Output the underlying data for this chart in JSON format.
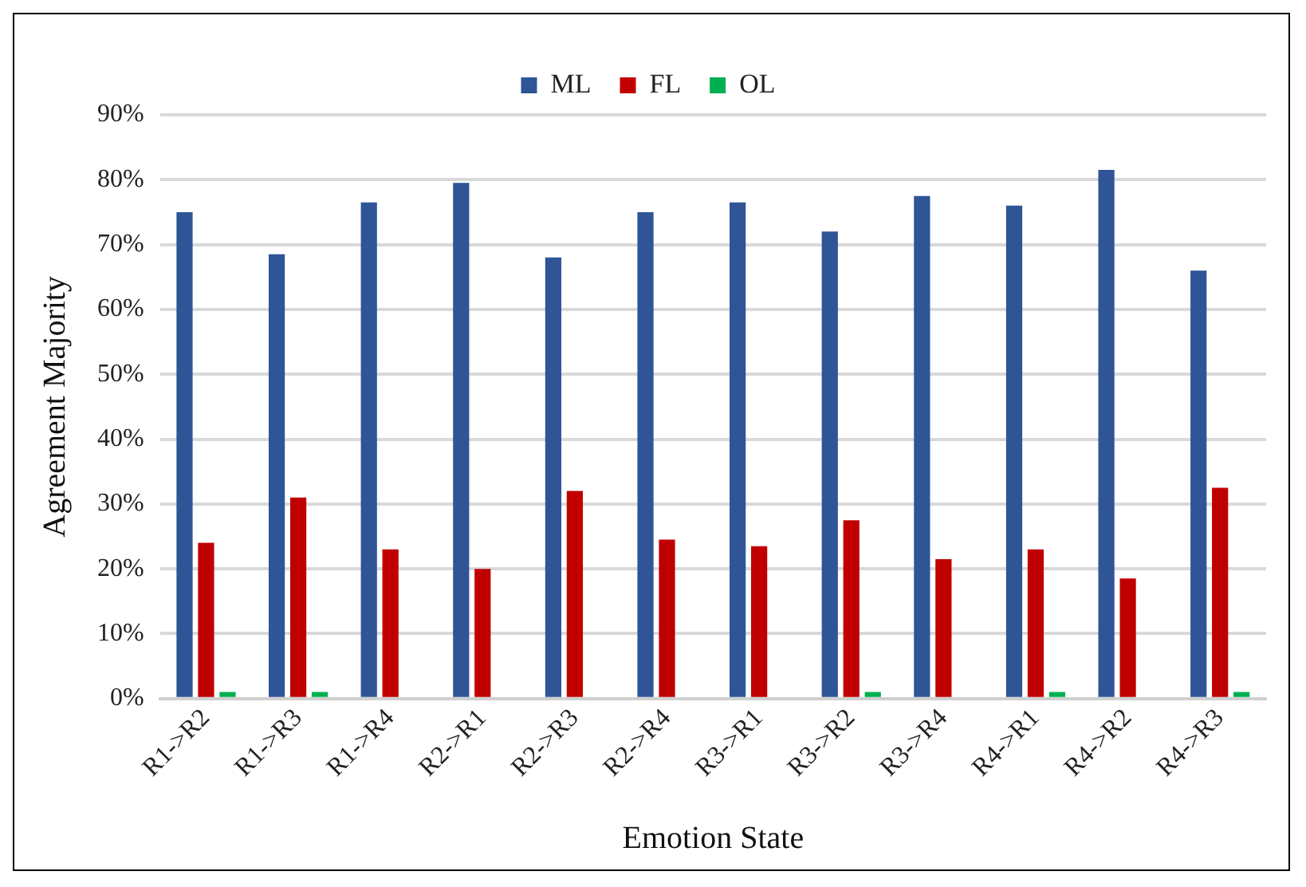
{
  "chart_data": {
    "type": "bar",
    "xlabel": "Emotion State",
    "ylabel": "Agreement Majority",
    "categories": [
      "R1->R2",
      "R1->R3",
      "R1->R4",
      "R2->R1",
      "R2->R3",
      "R2->R4",
      "R3->R1",
      "R3->R2",
      "R3->R4",
      "R4->R1",
      "R4->R2",
      "R4->R3"
    ],
    "series": [
      {
        "name": "ML",
        "color": "#2f5597",
        "values": [
          75,
          68.5,
          76.5,
          79.5,
          68,
          75,
          76.5,
          72,
          77.5,
          76,
          81.5,
          66
        ]
      },
      {
        "name": "FL",
        "color": "#c00000",
        "values": [
          24,
          31,
          23,
          20,
          32,
          24.5,
          23.5,
          27.5,
          21.5,
          23,
          18.5,
          32.5
        ]
      },
      {
        "name": "OL",
        "color": "#00b050",
        "values": [
          1,
          1,
          0,
          0,
          0,
          0,
          0,
          1,
          0,
          1,
          0,
          1
        ]
      }
    ],
    "ylim": [
      0,
      90
    ],
    "yticks": [
      {
        "value": 0,
        "label": "0%"
      },
      {
        "value": 10,
        "label": "10%"
      },
      {
        "value": 20,
        "label": "20%"
      },
      {
        "value": 30,
        "label": "30%"
      },
      {
        "value": 40,
        "label": "40%"
      },
      {
        "value": 50,
        "label": "50%"
      },
      {
        "value": 60,
        "label": "60%"
      },
      {
        "value": 70,
        "label": "70%"
      },
      {
        "value": 80,
        "label": "80%"
      },
      {
        "value": 90,
        "label": "90%"
      }
    ],
    "grid": "y",
    "legend": "top"
  }
}
